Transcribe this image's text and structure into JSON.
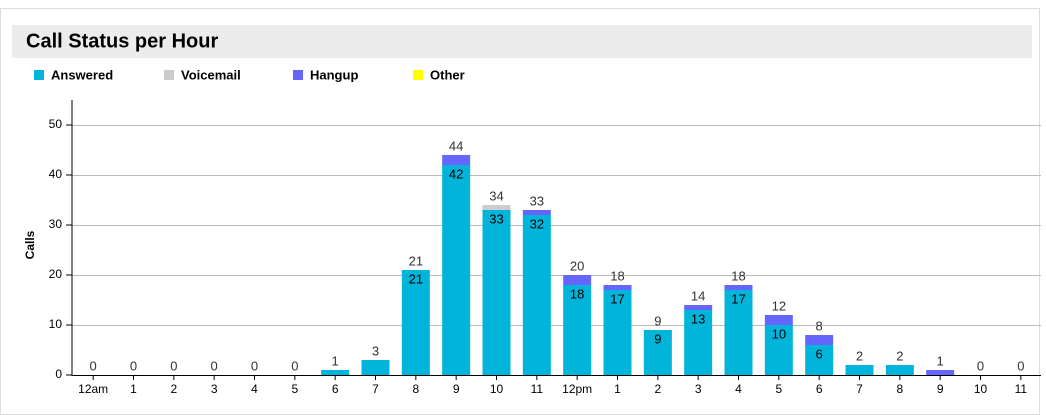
{
  "chart_data": {
    "type": "bar",
    "title": "Call Status per Hour",
    "y_label": "Calls",
    "categories": [
      "12am",
      "1",
      "2",
      "3",
      "4",
      "5",
      "6",
      "7",
      "8",
      "9",
      "10",
      "11",
      "12pm",
      "1",
      "2",
      "3",
      "4",
      "5",
      "6",
      "7",
      "8",
      "9",
      "10",
      "11"
    ],
    "series": [
      {
        "name": "Answered",
        "color": "#00b4da",
        "values": [
          0,
          0,
          0,
          0,
          0,
          0,
          1,
          3,
          21,
          42,
          33,
          32,
          18,
          17,
          9,
          13,
          17,
          10,
          6,
          2,
          2,
          0,
          0,
          0
        ]
      },
      {
        "name": "Voicemail",
        "color": "#cccccc",
        "values": [
          0,
          0,
          0,
          0,
          0,
          0,
          0,
          0,
          0,
          0,
          1,
          0,
          0,
          0,
          0,
          0,
          0,
          0,
          0,
          0,
          0,
          0,
          0,
          0
        ]
      },
      {
        "name": "Hangup",
        "color": "#6666ff",
        "values": [
          0,
          0,
          0,
          0,
          0,
          0,
          0,
          0,
          0,
          2,
          0,
          1,
          2,
          1,
          0,
          1,
          1,
          2,
          2,
          0,
          0,
          1,
          0,
          0
        ]
      },
      {
        "name": "Other",
        "color": "#ffff00",
        "values": [
          0,
          0,
          0,
          0,
          0,
          0,
          0,
          0,
          0,
          0,
          0,
          0,
          0,
          0,
          0,
          0,
          0,
          0,
          0,
          0,
          0,
          0,
          0,
          0
        ]
      }
    ],
    "totals": [
      0,
      0,
      0,
      0,
      0,
      0,
      1,
      3,
      21,
      44,
      34,
      33,
      20,
      18,
      9,
      14,
      18,
      12,
      8,
      2,
      2,
      1,
      0,
      0
    ],
    "stacked": true,
    "ylim": [
      0,
      55
    ],
    "yticks": [
      0,
      10,
      20,
      30,
      40,
      50
    ],
    "grid": true
  }
}
